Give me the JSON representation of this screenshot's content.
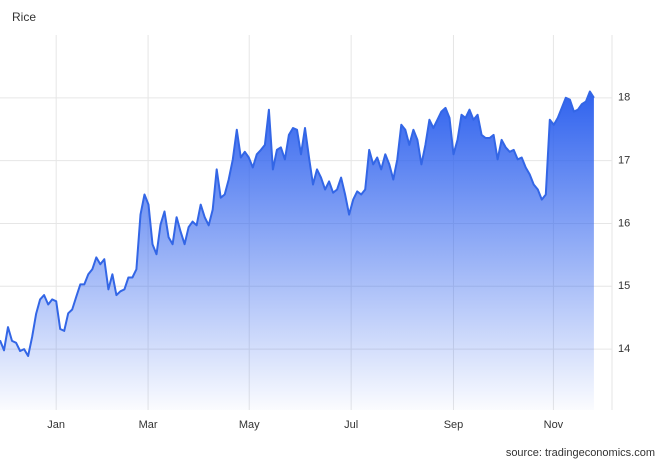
{
  "chart_data": {
    "type": "area",
    "title": "Rice",
    "source": "source: tradingeconomics.com",
    "series": [
      {
        "name": "Rice",
        "color": "#3366e6",
        "values": [
          14.14,
          13.98,
          14.35,
          14.13,
          14.1,
          13.97,
          14.0,
          13.89,
          14.19,
          14.56,
          14.79,
          14.86,
          14.71,
          14.79,
          14.76,
          14.32,
          14.29,
          14.57,
          14.63,
          14.83,
          15.03,
          15.03,
          15.19,
          15.27,
          15.46,
          15.35,
          15.43,
          14.95,
          15.19,
          14.86,
          14.92,
          14.95,
          15.14,
          15.14,
          15.27,
          16.14,
          16.46,
          16.3,
          15.67,
          15.51,
          15.98,
          16.19,
          15.78,
          15.67,
          16.1,
          15.87,
          15.67,
          15.94,
          16.03,
          15.97,
          16.3,
          16.1,
          15.97,
          16.22,
          16.86,
          16.41,
          16.46,
          16.7,
          17.02,
          17.49,
          17.05,
          17.14,
          17.05,
          16.89,
          17.1,
          17.17,
          17.25,
          17.81,
          16.86,
          17.17,
          17.21,
          17.02,
          17.41,
          17.52,
          17.49,
          17.1,
          17.52,
          17.05,
          16.62,
          16.86,
          16.73,
          16.54,
          16.67,
          16.49,
          16.54,
          16.73,
          16.46,
          16.14,
          16.38,
          16.51,
          16.46,
          16.54,
          17.17,
          16.94,
          17.05,
          16.86,
          17.1,
          16.94,
          16.7,
          17.02,
          17.57,
          17.49,
          17.25,
          17.49,
          17.33,
          16.94,
          17.25,
          17.65,
          17.52,
          17.65,
          17.78,
          17.84,
          17.68,
          17.1,
          17.33,
          17.73,
          17.68,
          17.81,
          17.65,
          17.73,
          17.41,
          17.36,
          17.36,
          17.41,
          17.02,
          17.33,
          17.21,
          17.14,
          17.17,
          17.02,
          17.05,
          16.89,
          16.78,
          16.62,
          16.54,
          16.38,
          16.46,
          17.65,
          17.57,
          17.68,
          17.84,
          18.0,
          17.97,
          17.78,
          17.81,
          17.9,
          17.94,
          18.1,
          18.0
        ]
      }
    ],
    "xlim": [
      0,
      152.5
    ],
    "xticks": [
      {
        "value": 14,
        "label": "Jan"
      },
      {
        "value": 36.9,
        "label": "Mar"
      },
      {
        "value": 62.1,
        "label": "May"
      },
      {
        "value": 87.5,
        "label": "Jul"
      },
      {
        "value": 113,
        "label": "Sep"
      },
      {
        "value": 137.9,
        "label": "Nov"
      }
    ],
    "ylim": [
      13.03,
      19
    ],
    "yticks": [
      14,
      15,
      16,
      17,
      18
    ],
    "grid": true
  }
}
